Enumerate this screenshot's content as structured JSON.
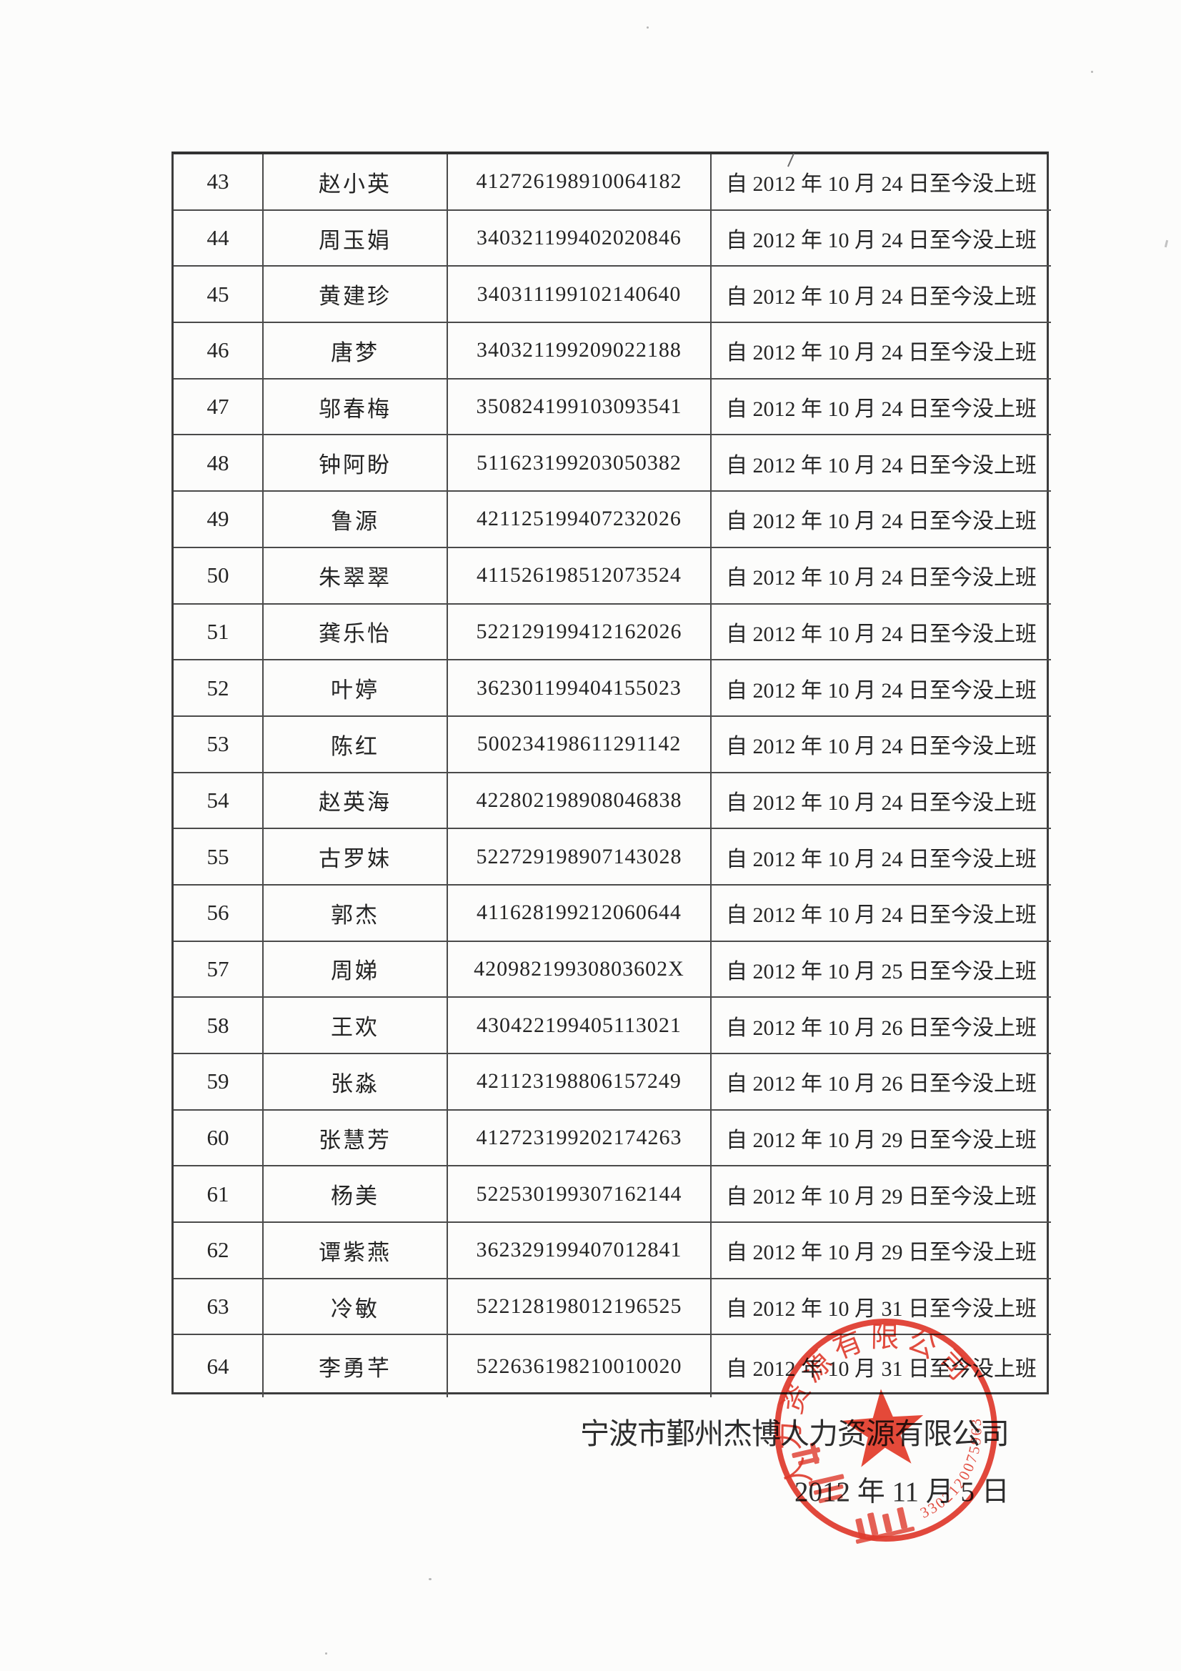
{
  "table": {
    "rows": [
      {
        "no": "43",
        "name": "赵小英",
        "id": "412726198910064182",
        "status": "自 2012 年 10 月 24 日至今没上班"
      },
      {
        "no": "44",
        "name": "周玉娟",
        "id": "340321199402020846",
        "status": "自 2012 年 10 月 24 日至今没上班"
      },
      {
        "no": "45",
        "name": "黄建珍",
        "id": "340311199102140640",
        "status": "自 2012 年 10 月 24 日至今没上班"
      },
      {
        "no": "46",
        "name": "唐梦",
        "id": "340321199209022188",
        "status": "自 2012 年 10 月 24 日至今没上班"
      },
      {
        "no": "47",
        "name": "邬春梅",
        "id": "350824199103093541",
        "status": "自 2012 年 10 月 24 日至今没上班"
      },
      {
        "no": "48",
        "name": "钟阿盼",
        "id": "511623199203050382",
        "status": "自 2012 年 10 月 24 日至今没上班"
      },
      {
        "no": "49",
        "name": "鲁源",
        "id": "421125199407232026",
        "status": "自 2012 年 10 月 24 日至今没上班"
      },
      {
        "no": "50",
        "name": "朱翠翠",
        "id": "411526198512073524",
        "status": "自 2012 年 10 月 24 日至今没上班"
      },
      {
        "no": "51",
        "name": "龚乐怡",
        "id": "522129199412162026",
        "status": "自 2012 年 10 月 24 日至今没上班"
      },
      {
        "no": "52",
        "name": "叶婷",
        "id": "362301199404155023",
        "status": "自 2012 年 10 月 24 日至今没上班"
      },
      {
        "no": "53",
        "name": "陈红",
        "id": "500234198611291142",
        "status": "自 2012 年 10 月 24 日至今没上班"
      },
      {
        "no": "54",
        "name": "赵英海",
        "id": "422802198908046838",
        "status": "自 2012 年 10 月 24 日至今没上班"
      },
      {
        "no": "55",
        "name": "古罗妹",
        "id": "522729198907143028",
        "status": "自 2012 年 10 月 24 日至今没上班"
      },
      {
        "no": "56",
        "name": "郭杰",
        "id": "411628199212060644",
        "status": "自 2012 年 10 月 24 日至今没上班"
      },
      {
        "no": "57",
        "name": "周娣",
        "id": "42098219930803602X",
        "status": "自 2012 年 10 月 25 日至今没上班"
      },
      {
        "no": "58",
        "name": "王欢",
        "id": "430422199405113021",
        "status": "自 2012 年 10 月 26 日至今没上班"
      },
      {
        "no": "59",
        "name": "张淼",
        "id": "421123198806157249",
        "status": "自 2012 年 10 月 26 日至今没上班"
      },
      {
        "no": "60",
        "name": "张慧芳",
        "id": "412723199202174263",
        "status": "自 2012 年 10 月 29 日至今没上班"
      },
      {
        "no": "61",
        "name": "杨美",
        "id": "522530199307162144",
        "status": "自 2012 年 10 月 29 日至今没上班"
      },
      {
        "no": "62",
        "name": "谭紫燕",
        "id": "362329199407012841",
        "status": "自 2012 年 10 月 29 日至今没上班"
      },
      {
        "no": "63",
        "name": "冷敏",
        "id": "522128198012196525",
        "status": "自 2012 年 10 月 31 日至今没上班"
      },
      {
        "no": "64",
        "name": "李勇芊",
        "id": "522636198210010020",
        "status": "自 2012 年 10 月 31 日至今没上班"
      }
    ]
  },
  "footer": {
    "company": "宁波市鄞州杰博人力资源有限公司",
    "date": "2012 年 11 月 5 日"
  },
  "stamp": {
    "arc_text": "人力资源有限公司",
    "registration_number": "3302120075963",
    "color": "#e23a2c"
  }
}
